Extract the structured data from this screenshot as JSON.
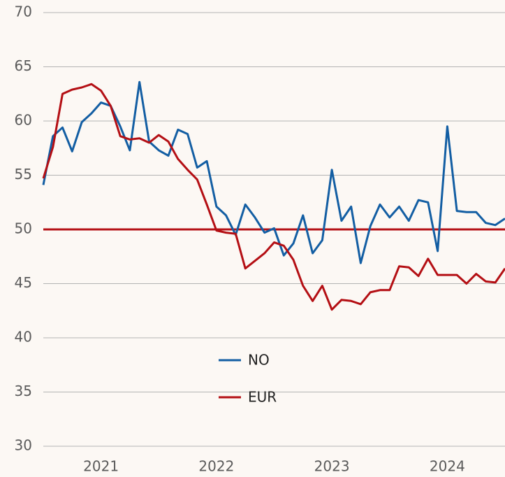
{
  "chart_data": {
    "type": "line",
    "categories": [
      null,
      null,
      null,
      null,
      null,
      null,
      "2021",
      null,
      null,
      null,
      null,
      null,
      null,
      null,
      null,
      null,
      null,
      null,
      "2022",
      null,
      null,
      null,
      null,
      null,
      null,
      null,
      null,
      null,
      null,
      null,
      "2023",
      null,
      null,
      null,
      null,
      null,
      null,
      null,
      null,
      null,
      null,
      null,
      "2024",
      null,
      null,
      null,
      null,
      null,
      null
    ],
    "series": [
      {
        "name": "NO",
        "color": "#135ea3",
        "values": [
          54.1,
          58.6,
          59.4,
          57.2,
          59.9,
          60.7,
          61.7,
          61.4,
          59.5,
          57.3,
          63.6,
          58.1,
          57.3,
          56.8,
          59.2,
          58.8,
          55.7,
          56.3,
          52.1,
          51.3,
          49.5,
          52.3,
          51.1,
          49.7,
          50.1,
          47.6,
          48.7,
          51.3,
          47.8,
          49.0,
          55.5,
          50.8,
          52.1,
          46.9,
          50.3,
          52.3,
          51.1,
          52.1,
          50.8,
          52.7,
          52.5,
          48.0,
          59.5,
          51.7,
          51.6,
          51.6,
          50.6,
          50.4,
          51.0
        ]
      },
      {
        "name": "EUR",
        "color": "#b40f14",
        "values": [
          54.7,
          57.6,
          62.5,
          62.9,
          63.1,
          63.4,
          62.8,
          61.4,
          58.6,
          58.3,
          58.4,
          58.0,
          58.7,
          58.1,
          56.5,
          55.5,
          54.6,
          52.3,
          49.9,
          49.7,
          49.6,
          46.4,
          47.1,
          47.8,
          48.8,
          48.5,
          47.2,
          44.8,
          43.4,
          44.8,
          42.6,
          43.5,
          43.4,
          43.1,
          44.2,
          44.4,
          44.4,
          46.6,
          46.5,
          45.7,
          47.3,
          45.8,
          45.8,
          45.8,
          45.0,
          45.9,
          45.2,
          45.1,
          46.4
        ]
      }
    ],
    "reference_line": {
      "value": 50,
      "color": "#b40f14"
    },
    "ylim": [
      30,
      70
    ],
    "yticks": [
      30,
      35,
      40,
      45,
      50,
      55,
      60,
      65,
      70
    ],
    "grid": true
  }
}
